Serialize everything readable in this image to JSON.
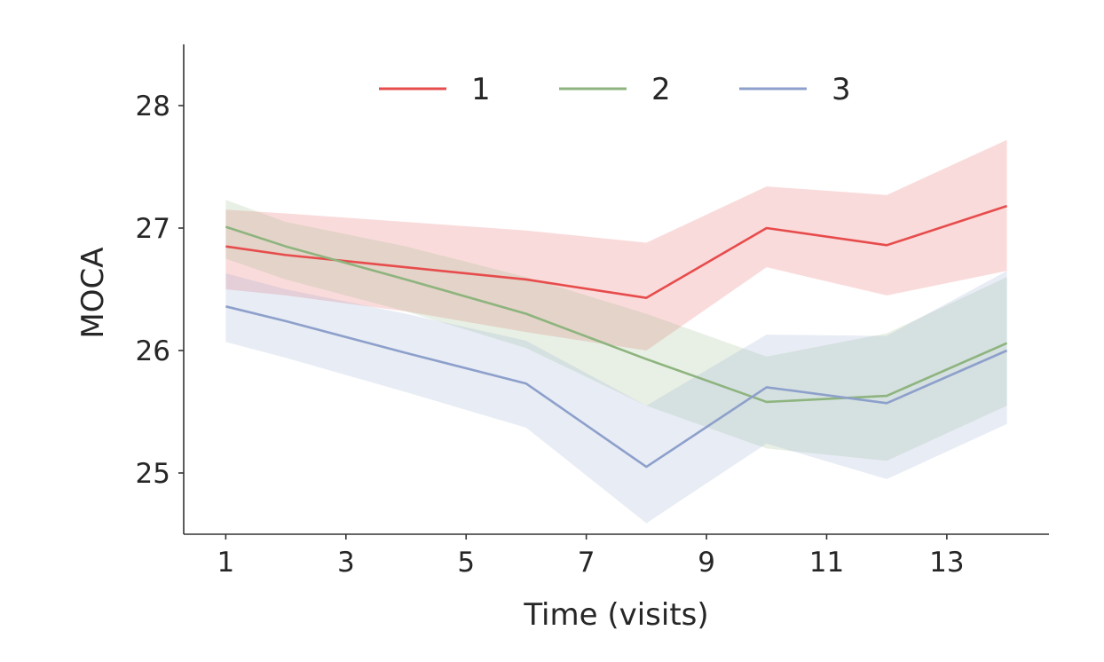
{
  "chart_data": {
    "type": "line",
    "title": "",
    "xlabel": "Time (visits)",
    "ylabel": "MOCA",
    "xlim": [
      0.3,
      14.7
    ],
    "ylim": [
      24.5,
      28.5
    ],
    "xticks": [
      1,
      3,
      5,
      7,
      9,
      11,
      13
    ],
    "yticks": [
      25,
      26,
      27,
      28
    ],
    "grid": false,
    "legend": {
      "position": "top-center",
      "columns": 3
    },
    "x": [
      1,
      2,
      4,
      6,
      8,
      10,
      12,
      14
    ],
    "series": [
      {
        "name": "1",
        "color": "#e74c4c",
        "values": [
          26.85,
          26.78,
          26.68,
          26.58,
          26.43,
          27.0,
          26.86,
          27.18
        ],
        "lower": [
          26.5,
          26.45,
          26.32,
          26.15,
          26.0,
          26.68,
          26.45,
          26.65
        ],
        "upper": [
          27.15,
          27.12,
          27.05,
          26.98,
          26.88,
          27.34,
          27.27,
          27.72
        ]
      },
      {
        "name": "2",
        "color": "#8db47e",
        "values": [
          27.01,
          26.85,
          26.58,
          26.3,
          25.93,
          25.58,
          25.63,
          26.06
        ],
        "lower": [
          26.75,
          26.58,
          26.32,
          26.02,
          25.55,
          25.2,
          25.1,
          25.55
        ],
        "upper": [
          27.23,
          27.05,
          26.85,
          26.6,
          26.3,
          25.95,
          26.14,
          26.6
        ]
      },
      {
        "name": "3",
        "color": "#8da0cb",
        "values": [
          26.36,
          26.24,
          25.98,
          25.73,
          25.05,
          25.7,
          25.57,
          26.0
        ],
        "lower": [
          26.07,
          25.94,
          25.66,
          25.37,
          24.59,
          25.24,
          24.95,
          25.4
        ],
        "upper": [
          26.63,
          26.5,
          26.3,
          26.08,
          25.55,
          26.13,
          26.12,
          26.65
        ]
      }
    ]
  }
}
